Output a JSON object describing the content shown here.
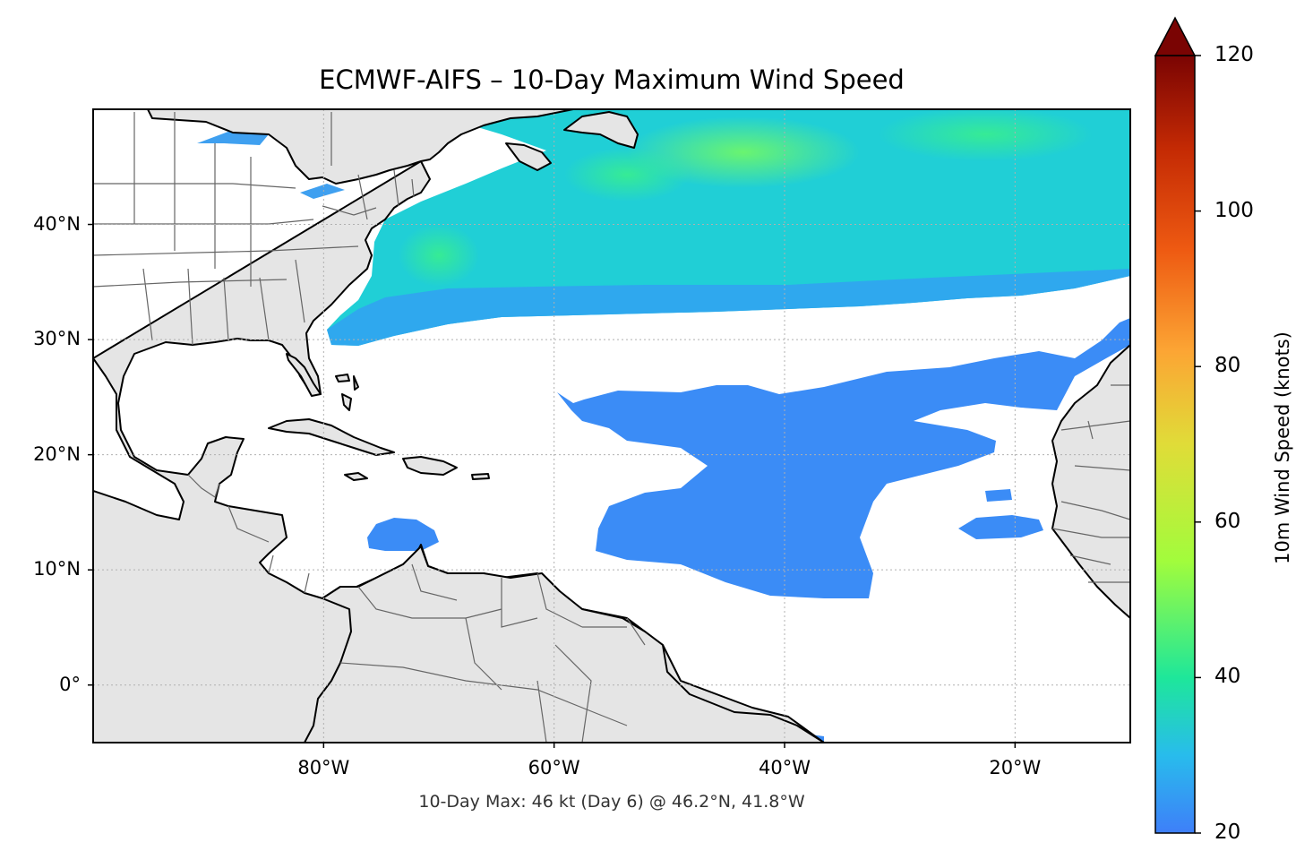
{
  "title": "ECMWF-AIFS – 10-Day Maximum Wind Speed",
  "footnote": "10-Day Max: 46 kt (Day 6) @ 46.2°N, 41.8°W",
  "map": {
    "lat_range": [
      -5,
      50
    ],
    "lon_range": [
      -100,
      -10
    ],
    "lat_ticks": [
      {
        "value": 40,
        "label": "40°N"
      },
      {
        "value": 30,
        "label": "30°N"
      },
      {
        "value": 20,
        "label": "20°N"
      },
      {
        "value": 10,
        "label": "10°N"
      },
      {
        "value": 0,
        "label": "0°"
      }
    ],
    "lon_ticks": [
      {
        "value": -80,
        "label": "80°W"
      },
      {
        "value": -60,
        "label": "60°W"
      },
      {
        "value": -40,
        "label": "40°W"
      },
      {
        "value": -20,
        "label": "20°W"
      }
    ],
    "gridlines": true,
    "land_color": "#e5e5e5",
    "max_point": {
      "lat": 46.2,
      "lon": -41.8,
      "value": 46,
      "day": 6
    }
  },
  "colorbar": {
    "label": "10m Wind Speed (knots)",
    "min": 20,
    "max": 120,
    "extend": "max",
    "ticks": [
      20,
      40,
      60,
      80,
      100,
      120
    ],
    "colormap": "turbo"
  }
}
